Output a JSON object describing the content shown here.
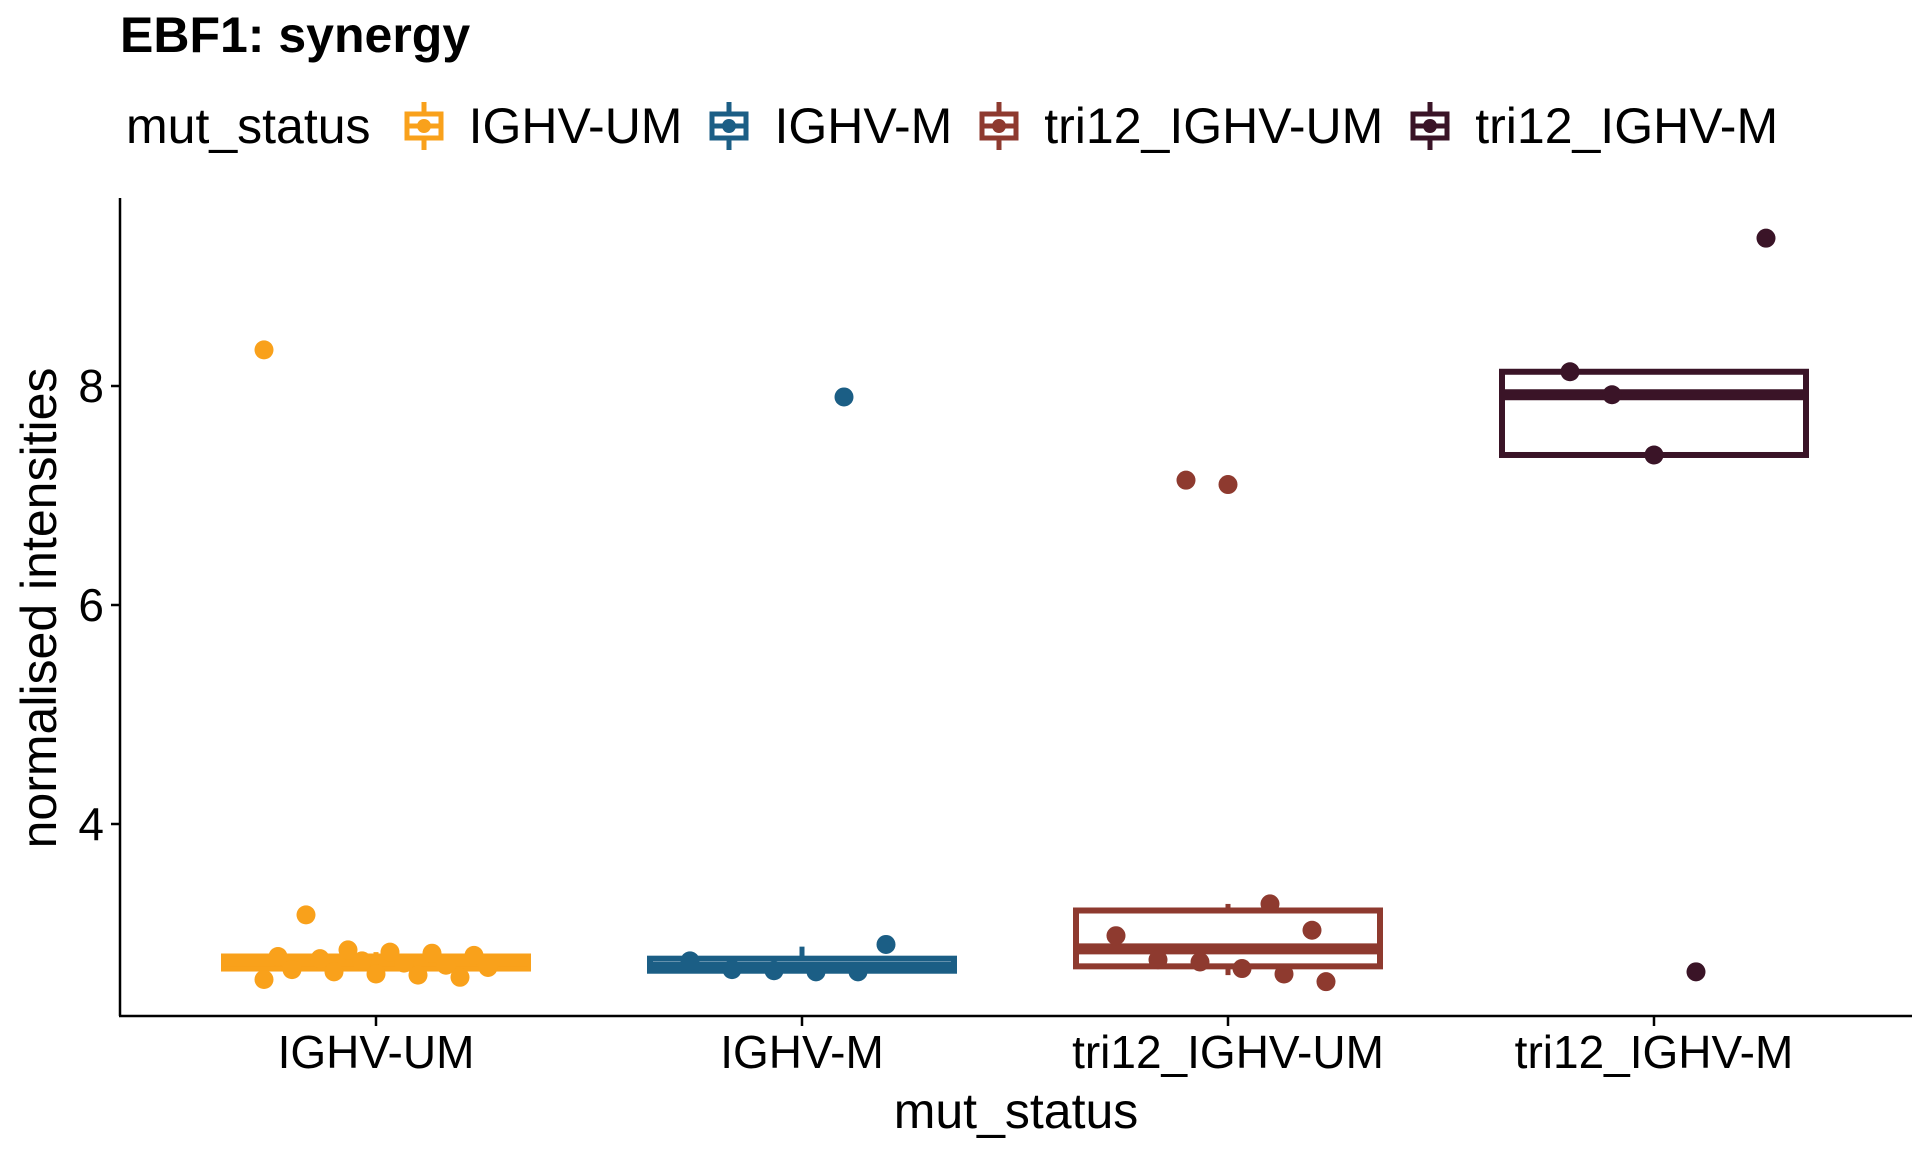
{
  "chart_data": {
    "type": "boxplot",
    "title": "EBF1: synergy",
    "xlabel": "mut_status",
    "ylabel": "normalised intensities",
    "legend_title": "mut_status",
    "legend_position": "top",
    "grid": false,
    "categories": [
      "IGHV-UM",
      "IGHV-M",
      "tri12_IGHV-UM",
      "tri12_IGHV-M"
    ],
    "y_ticks": [
      4,
      6,
      8
    ],
    "ylim": [
      2.2,
      9.6
    ],
    "series": [
      {
        "name": "IGHV-UM",
        "color": "#F9A11B",
        "box": {
          "q1": 2.68,
          "median": 2.75,
          "q3": 2.79,
          "whisker_low": 2.58,
          "whisker_high": 2.83
        },
        "points": [
          8.33,
          3.17,
          2.85,
          2.83,
          2.82,
          2.8,
          2.79,
          2.77,
          2.75,
          2.73,
          2.71,
          2.69,
          2.67,
          2.65,
          2.63,
          2.62,
          2.6,
          2.58
        ]
      },
      {
        "name": "IGHV-M",
        "color": "#1B5E85",
        "box": {
          "q1": 2.66,
          "median": 2.69,
          "q3": 2.77,
          "whisker_low": 2.65,
          "whisker_high": 2.88
        },
        "points": [
          7.9,
          2.9,
          2.75,
          2.67,
          2.66,
          2.65,
          2.65
        ]
      },
      {
        "name": "tri12_IGHV-UM",
        "color": "#8E3A2F",
        "box": {
          "q1": 2.7,
          "median": 2.86,
          "q3": 3.21,
          "whisker_low": 2.62,
          "whisker_high": 3.27
        },
        "points": [
          7.14,
          7.1,
          3.27,
          3.03,
          2.98,
          2.76,
          2.74,
          2.68,
          2.63,
          2.56
        ]
      },
      {
        "name": "tri12_IGHV-M",
        "color": "#3A1427",
        "box": {
          "q1": 7.37,
          "median": 7.92,
          "q3": 8.13,
          "whisker_low": 7.37,
          "whisker_high": 8.13
        },
        "points": [
          9.35,
          8.13,
          7.92,
          7.37,
          2.65
        ]
      }
    ]
  }
}
